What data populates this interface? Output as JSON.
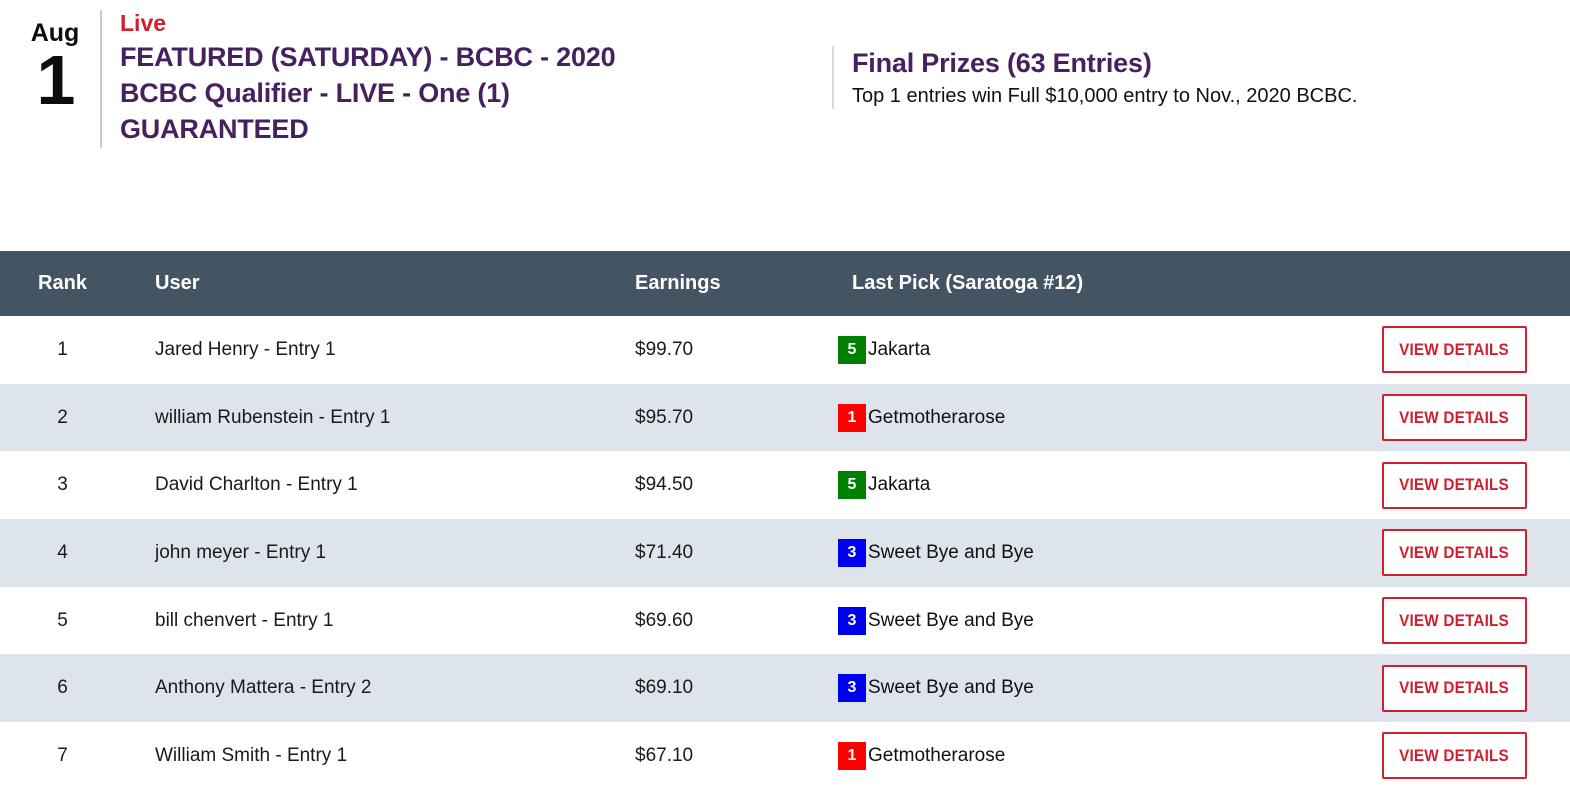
{
  "event": {
    "month": "Aug",
    "day": "1",
    "status": "Live",
    "title": "FEATURED (SATURDAY) - BCBC - 2020\nBCBC Qualifier - LIVE - One (1)\nGUARANTEED",
    "prizes_title": "Final Prizes (63 Entries)",
    "prizes_description": "Top 1 entries win Full $10,000 entry to Nov., 2020 BCBC."
  },
  "colors": {
    "purple": "#46215f",
    "red": "#d0202f",
    "header_bg": "#435463",
    "alt_row_bg": "#dde4eb",
    "badge_green": "#008000",
    "badge_red": "#fe0000",
    "badge_blue": "#0000f0"
  },
  "table": {
    "columns": [
      "Rank",
      "User",
      "Earnings",
      "Last Pick (Saratoga #12)"
    ],
    "action_label": "VIEW DETAILS",
    "rows": [
      {
        "rank": "1",
        "user": "Jared Henry - Entry 1",
        "earnings": "$99.70",
        "pick_number": "5",
        "pick_color": "green",
        "pick_name": "Jakarta"
      },
      {
        "rank": "2",
        "user": "william Rubenstein - Entry 1",
        "earnings": "$95.70",
        "pick_number": "1",
        "pick_color": "red",
        "pick_name": "Getmotherarose"
      },
      {
        "rank": "3",
        "user": "David Charlton - Entry 1",
        "earnings": "$94.50",
        "pick_number": "5",
        "pick_color": "green",
        "pick_name": "Jakarta"
      },
      {
        "rank": "4",
        "user": "john meyer - Entry 1",
        "earnings": "$71.40",
        "pick_number": "3",
        "pick_color": "blue",
        "pick_name": "Sweet Bye and Bye"
      },
      {
        "rank": "5",
        "user": "bill chenvert - Entry 1",
        "earnings": "$69.60",
        "pick_number": "3",
        "pick_color": "blue",
        "pick_name": "Sweet Bye and Bye"
      },
      {
        "rank": "6",
        "user": "Anthony Mattera - Entry 2",
        "earnings": "$69.10",
        "pick_number": "3",
        "pick_color": "blue",
        "pick_name": "Sweet Bye and Bye"
      },
      {
        "rank": "7",
        "user": "William Smith - Entry 1",
        "earnings": "$67.10",
        "pick_number": "1",
        "pick_color": "red",
        "pick_name": "Getmotherarose"
      }
    ]
  }
}
